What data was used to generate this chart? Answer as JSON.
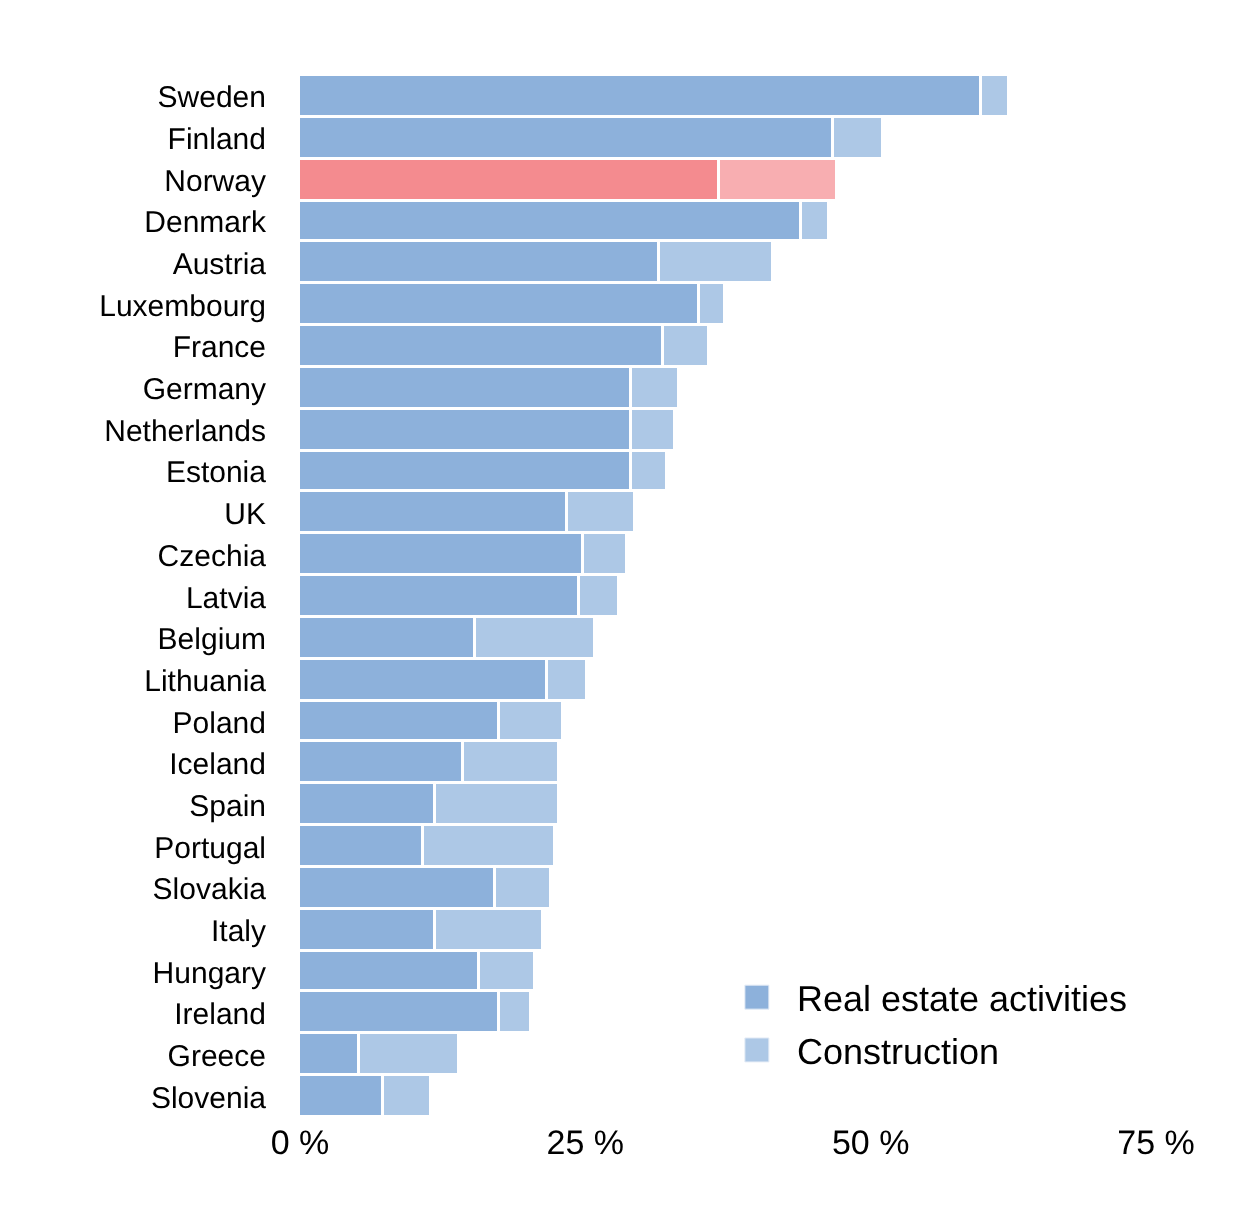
{
  "chart_data": {
    "type": "bar",
    "orientation": "horizontal",
    "stacked": true,
    "categories": [
      "Sweden",
      "Finland",
      "Norway",
      "Denmark",
      "Austria",
      "Luxembourg",
      "France",
      "Germany",
      "Netherlands",
      "Estonia",
      "UK",
      "Czechia",
      "Latvia",
      "Belgium",
      "Lithuania",
      "Poland",
      "Iceland",
      "Spain",
      "Portugal",
      "Slovakia",
      "Italy",
      "Hungary",
      "Ireland",
      "Greece",
      "Slovenia"
    ],
    "series": [
      {
        "name": "Real estate activities",
        "color": "#8db1db",
        "colors": [
          "#8db1db",
          "#8db1db",
          "#f48b8f",
          "#8db1db",
          "#8db1db",
          "#8db1db",
          "#8db1db",
          "#8db1db",
          "#8db1db",
          "#8db1db",
          "#8db1db",
          "#8db1db",
          "#8db1db",
          "#8db1db",
          "#8db1db",
          "#8db1db",
          "#8db1db",
          "#8db1db",
          "#8db1db",
          "#8db1db",
          "#8db1db",
          "#8db1db",
          "#8db1db",
          "#8db1db",
          "#8db1db"
        ],
        "values": [
          59.7,
          46.8,
          36.8,
          44.0,
          31.5,
          35.0,
          31.9,
          29.1,
          29.1,
          29.1,
          23.5,
          24.9,
          24.6,
          15.5,
          21.7,
          17.5,
          14.4,
          11.9,
          10.9,
          17.2,
          11.9,
          15.8,
          17.5,
          5.3,
          7.4
        ]
      },
      {
        "name": "Construction",
        "color": "#adc8e6",
        "colors": [
          "#adc8e6",
          "#adc8e6",
          "#f8aeb1",
          "#adc8e6",
          "#adc8e6",
          "#adc8e6",
          "#adc8e6",
          "#adc8e6",
          "#adc8e6",
          "#adc8e6",
          "#adc8e6",
          "#adc8e6",
          "#adc8e6",
          "#adc8e6",
          "#adc8e6",
          "#adc8e6",
          "#adc8e6",
          "#adc8e6",
          "#adc8e6",
          "#adc8e6",
          "#adc8e6",
          "#adc8e6",
          "#adc8e6",
          "#adc8e6",
          "#adc8e6"
        ],
        "values": [
          2.5,
          4.3,
          10.4,
          2.5,
          10.1,
          2.4,
          4.1,
          4.2,
          3.8,
          3.1,
          5.9,
          3.8,
          3.4,
          10.4,
          3.5,
          5.6,
          8.4,
          10.9,
          11.5,
          4.9,
          9.5,
          4.9,
          2.8,
          8.7,
          4.2
        ]
      }
    ],
    "xlim": [
      0,
      75
    ],
    "xticks": [
      {
        "value": 0,
        "label": "0 %"
      },
      {
        "value": 25,
        "label": "25 %"
      },
      {
        "value": 50,
        "label": "50 %"
      },
      {
        "value": 75,
        "label": "75 %"
      }
    ],
    "legend": "bottom right"
  }
}
